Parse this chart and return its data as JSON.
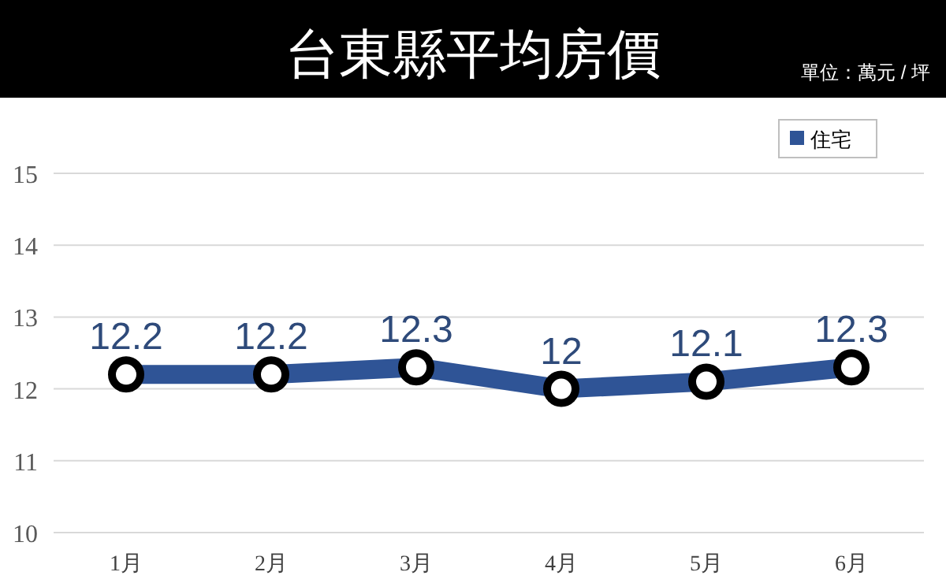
{
  "chart_data": {
    "type": "line",
    "title": "台東縣平均房價",
    "annotations": [
      "單位：萬元 / 坪"
    ],
    "categories": [
      "1月",
      "2月",
      "3月",
      "4月",
      "5月",
      "6月"
    ],
    "series": [
      {
        "name": "住宅",
        "color": "#2f5496",
        "values": [
          12.2,
          12.2,
          12.3,
          12,
          12.1,
          12.3
        ]
      }
    ],
    "ylim": [
      10,
      15
    ],
    "yticks": [
      10,
      11,
      12,
      13,
      14,
      15
    ],
    "grid": "y",
    "legend": "top right",
    "marker": "circle",
    "data_labels": true
  }
}
